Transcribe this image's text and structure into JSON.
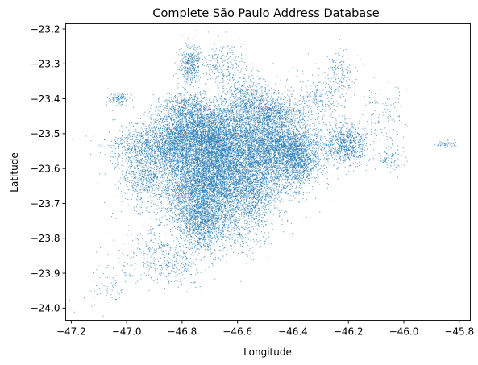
{
  "chart_data": {
    "type": "scatter",
    "title": "Complete São Paulo Address Database",
    "xlabel": "Longitude",
    "ylabel": "Latitude",
    "xlim": [
      -47.22,
      -45.76
    ],
    "ylim": [
      -24.035,
      -23.185
    ],
    "xticks": [
      -47.2,
      -47.0,
      -46.8,
      -46.6,
      -46.4,
      -46.2,
      -46.0,
      -45.8
    ],
    "xtick_labels": [
      "−47.2",
      "−47.0",
      "−46.8",
      "−46.6",
      "−46.4",
      "−46.2",
      "−46.0",
      "−45.8"
    ],
    "yticks": [
      -23.2,
      -23.3,
      -23.4,
      -23.5,
      -23.6,
      -23.7,
      -23.8,
      -23.9,
      -24.0
    ],
    "ytick_labels": [
      "−23.2",
      "−23.3",
      "−23.4",
      "−23.5",
      "−23.6",
      "−23.7",
      "−23.8",
      "−23.9",
      "−24.0"
    ],
    "grid": false,
    "legend": "none",
    "marker_color": "#1f77b4",
    "marker": "point",
    "clusters": [
      {
        "x": -46.63,
        "y": -23.55,
        "sx": 0.14,
        "sy": 0.07,
        "weight": 18
      },
      {
        "x": -46.72,
        "y": -23.49,
        "sx": 0.08,
        "sy": 0.04,
        "weight": 8
      },
      {
        "x": -46.47,
        "y": -23.53,
        "sx": 0.08,
        "sy": 0.05,
        "weight": 9
      },
      {
        "x": -46.76,
        "y": -23.66,
        "sx": 0.06,
        "sy": 0.07,
        "weight": 9
      },
      {
        "x": -46.68,
        "y": -23.63,
        "sx": 0.05,
        "sy": 0.07,
        "weight": 7
      },
      {
        "x": -46.55,
        "y": -23.65,
        "sx": 0.06,
        "sy": 0.05,
        "weight": 5
      },
      {
        "x": -46.38,
        "y": -23.57,
        "sx": 0.04,
        "sy": 0.04,
        "weight": 4
      },
      {
        "x": -46.21,
        "y": -23.53,
        "sx": 0.04,
        "sy": 0.03,
        "weight": 3
      },
      {
        "x": -46.73,
        "y": -23.76,
        "sx": 0.04,
        "sy": 0.04,
        "weight": 3
      },
      {
        "x": -46.93,
        "y": -23.54,
        "sx": 0.07,
        "sy": 0.03,
        "weight": 3
      },
      {
        "x": -46.94,
        "y": -23.63,
        "sx": 0.04,
        "sy": 0.04,
        "weight": 2
      },
      {
        "x": -46.82,
        "y": -23.52,
        "sx": 0.05,
        "sy": 0.04,
        "weight": 3
      },
      {
        "x": -46.77,
        "y": -23.3,
        "sx": 0.02,
        "sy": 0.03,
        "weight": 1.5
      },
      {
        "x": -46.79,
        "y": -23.42,
        "sx": 0.04,
        "sy": 0.02,
        "weight": 1.5
      },
      {
        "x": -46.57,
        "y": -23.4,
        "sx": 0.05,
        "sy": 0.03,
        "weight": 2
      },
      {
        "x": -46.47,
        "y": -23.44,
        "sx": 0.05,
        "sy": 0.03,
        "weight": 2
      },
      {
        "x": -46.65,
        "y": -23.3,
        "sx": 0.04,
        "sy": 0.03,
        "weight": 1
      },
      {
        "x": -46.3,
        "y": -23.4,
        "sx": 0.05,
        "sy": 0.04,
        "weight": 1
      },
      {
        "x": -46.82,
        "y": -23.87,
        "sx": 0.05,
        "sy": 0.03,
        "weight": 1
      },
      {
        "x": -46.92,
        "y": -23.83,
        "sx": 0.05,
        "sy": 0.05,
        "weight": 0.8
      },
      {
        "x": -47.03,
        "y": -23.4,
        "sx": 0.02,
        "sy": 0.01,
        "weight": 0.5
      },
      {
        "x": -46.23,
        "y": -23.32,
        "sx": 0.03,
        "sy": 0.03,
        "weight": 0.5
      },
      {
        "x": -46.06,
        "y": -23.45,
        "sx": 0.04,
        "sy": 0.04,
        "weight": 0.5
      },
      {
        "x": -46.05,
        "y": -23.57,
        "sx": 0.03,
        "sy": 0.02,
        "weight": 0.4
      },
      {
        "x": -45.85,
        "y": -23.53,
        "sx": 0.02,
        "sy": 0.005,
        "weight": 0.2
      },
      {
        "x": -47.07,
        "y": -23.93,
        "sx": 0.05,
        "sy": 0.04,
        "weight": 0.4
      },
      {
        "x": -46.6,
        "y": -23.75,
        "sx": 0.06,
        "sy": 0.05,
        "weight": 2
      }
    ]
  }
}
